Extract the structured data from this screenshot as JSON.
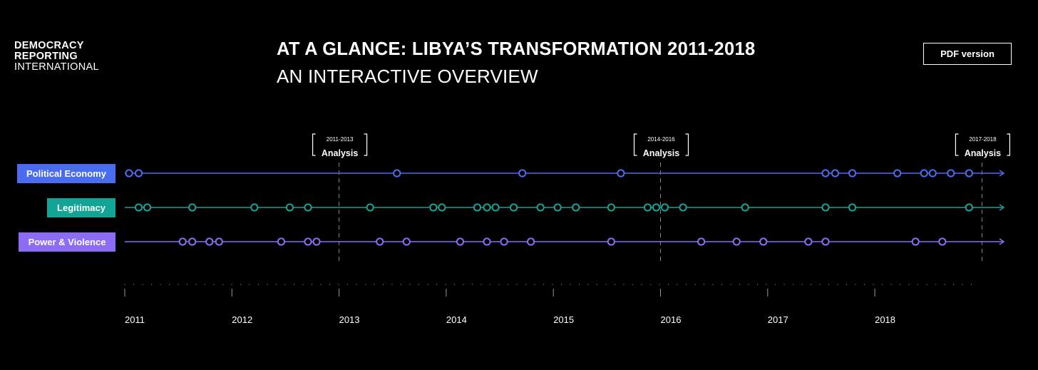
{
  "logo": {
    "line1": "DEMOCRACY",
    "line2": "REPORTING",
    "line3": "INTERNATIONAL"
  },
  "header": {
    "title": "AT A GLANCE: LIBYA’S TRANSFORMATION 2011-2018",
    "subtitle": "AN INTERACTIVE OVERVIEW",
    "pdf_label": "PDF version"
  },
  "colors": {
    "political": "#4a6cf0",
    "legitimacy": "#12a494",
    "power": "#8b6cf2",
    "background": "#000000"
  },
  "chart_data": {
    "type": "timeline",
    "title": "AT A GLANCE: LIBYA’S TRANSFORMATION 2011-2018",
    "x_range": [
      2011.0,
      2019.25
    ],
    "years": [
      "2011",
      "2012",
      "2013",
      "2014",
      "2015",
      "2016",
      "2017",
      "2018"
    ],
    "year_values": [
      2011,
      2012,
      2013,
      2014,
      2015,
      2016,
      2017,
      2018
    ],
    "analysis_periods": [
      {
        "range": "2011-2013",
        "label": "Analysis",
        "at": 2013.0
      },
      {
        "range": "2014-2016",
        "label": "Analysis",
        "at": 2016.0
      },
      {
        "range": "2017-2018",
        "label": "Analysis",
        "at": 2019.0
      }
    ],
    "series": [
      {
        "name": "Political Economy",
        "color": "#4a6cf0",
        "events": [
          2011.04,
          2011.13,
          2013.54,
          2014.71,
          2015.63,
          2017.54,
          2017.63,
          2017.79,
          2018.21,
          2018.46,
          2018.54,
          2018.71,
          2018.88
        ]
      },
      {
        "name": "Legitimacy",
        "color": "#12a494",
        "events": [
          2011.13,
          2011.21,
          2011.63,
          2012.21,
          2012.54,
          2012.71,
          2013.29,
          2013.88,
          2013.96,
          2014.29,
          2014.38,
          2014.46,
          2014.63,
          2014.88,
          2015.04,
          2015.21,
          2015.54,
          2015.88,
          2015.96,
          2016.04,
          2016.21,
          2016.79,
          2017.54,
          2017.79,
          2018.88
        ]
      },
      {
        "name": "Power & Violence",
        "color": "#8b6cf2",
        "events": [
          2011.54,
          2011.63,
          2011.79,
          2011.88,
          2012.46,
          2012.71,
          2012.79,
          2013.38,
          2013.63,
          2014.13,
          2014.38,
          2014.54,
          2014.79,
          2015.54,
          2016.38,
          2016.71,
          2016.96,
          2017.38,
          2017.54,
          2018.38,
          2018.63
        ]
      }
    ]
  }
}
